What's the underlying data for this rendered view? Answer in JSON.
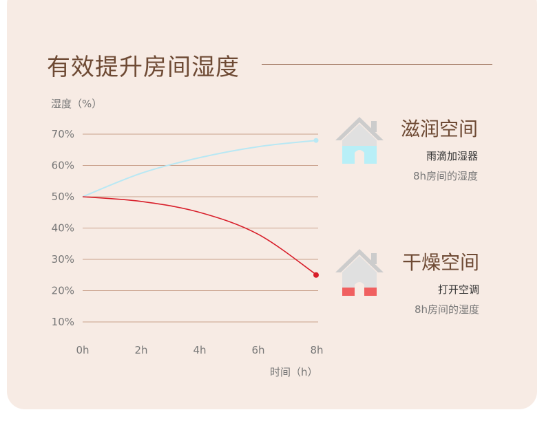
{
  "title": "有效提升房间湿度",
  "chart_data": {
    "type": "line",
    "ylabel": "湿度（%）",
    "xlabel": "时间（h）",
    "x": [
      0,
      8
    ],
    "y_ticks": [
      "10%",
      "20%",
      "30%",
      "40%",
      "50%",
      "60%",
      "70%"
    ],
    "y_tick_values": [
      10,
      20,
      30,
      40,
      50,
      60,
      70
    ],
    "x_ticks": [
      "0h",
      "2h",
      "4h",
      "6h",
      "8h"
    ],
    "x_tick_values": [
      0,
      2,
      4,
      6,
      8
    ],
    "ylim": [
      10,
      70
    ],
    "xlim": [
      0,
      8
    ],
    "grid": true,
    "series": [
      {
        "name": "滋润空间",
        "x": [
          0,
          2,
          4,
          6,
          8
        ],
        "y": [
          50,
          57.5,
          62.5,
          66,
          68
        ],
        "color": "#b8e8f4"
      },
      {
        "name": "干燥空间",
        "x": [
          0,
          2,
          4,
          6,
          8
        ],
        "y": [
          50,
          48.5,
          45,
          38,
          25
        ],
        "color": "#d81e2a"
      }
    ]
  },
  "legend": {
    "moist": {
      "name": "滋润空间",
      "line1": "雨滴加湿器",
      "line2": "8h房间的湿度",
      "icon": "house-icon",
      "fill_color": "#b8eff7"
    },
    "dry": {
      "name": "干燥空间",
      "line1": "打开空调",
      "line2": "8h房间的湿度",
      "icon": "house-icon",
      "fill_color": "#f06060"
    }
  }
}
